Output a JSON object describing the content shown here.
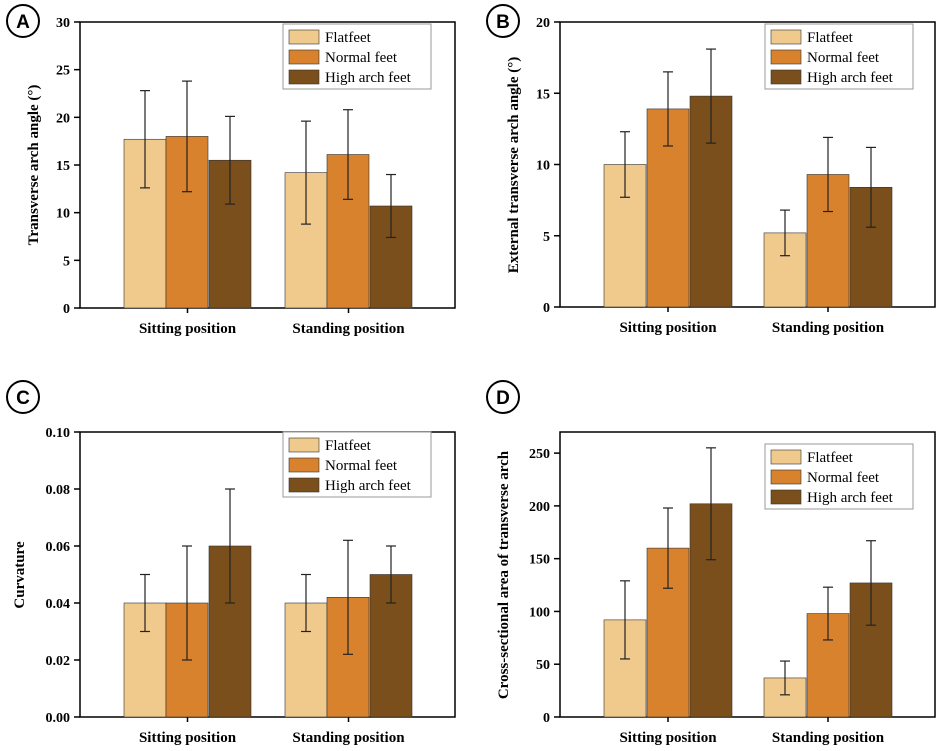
{
  "colors": {
    "series": [
      "#f0c98d",
      "#d9822d",
      "#7b4f1c"
    ],
    "axis": "#000000"
  },
  "chart_data": [
    {
      "panel": "A",
      "type": "bar",
      "title": "",
      "xlabel": "",
      "ylabel": "Transverse arch angle (°)",
      "categories": [
        "Sitting position",
        "Standing position"
      ],
      "series": [
        {
          "name": "Flatfeet",
          "values": [
            17.7,
            14.2
          ],
          "errors": [
            5.1,
            5.4
          ]
        },
        {
          "name": "Normal feet",
          "values": [
            18.0,
            16.1
          ],
          "errors": [
            5.8,
            4.7
          ]
        },
        {
          "name": "High arch feet",
          "values": [
            15.5,
            10.7
          ],
          "errors": [
            4.6,
            3.3
          ]
        }
      ],
      "ylim": [
        0,
        30
      ],
      "yticks": [
        0,
        5,
        10,
        15,
        20,
        25,
        30
      ],
      "ytick_labels": [
        "0",
        "5",
        "10",
        "15",
        "20",
        "25",
        "30"
      ],
      "legend": "top-right"
    },
    {
      "panel": "B",
      "type": "bar",
      "title": "",
      "xlabel": "",
      "ylabel": "External transverse arch angle (°)",
      "categories": [
        "Sitting position",
        "Standing position"
      ],
      "series": [
        {
          "name": "Flatfeet",
          "values": [
            10.0,
            5.2
          ],
          "errors": [
            2.3,
            1.6
          ]
        },
        {
          "name": "Normal feet",
          "values": [
            13.9,
            9.3
          ],
          "errors": [
            2.6,
            2.6
          ]
        },
        {
          "name": "High arch feet",
          "values": [
            14.8,
            8.4
          ],
          "errors": [
            3.3,
            2.8
          ]
        }
      ],
      "ylim": [
        0,
        20
      ],
      "yticks": [
        0,
        5,
        10,
        15,
        20
      ],
      "ytick_labels": [
        "0",
        "5",
        "10",
        "15",
        "20"
      ],
      "legend": "top-right"
    },
    {
      "panel": "C",
      "type": "bar",
      "title": "",
      "xlabel": "",
      "ylabel": "Curvature",
      "categories": [
        "Sitting position",
        "Standing position"
      ],
      "series": [
        {
          "name": "Flatfeet",
          "values": [
            0.04,
            0.04
          ],
          "errors": [
            0.01,
            0.01
          ]
        },
        {
          "name": "Normal feet",
          "values": [
            0.04,
            0.042
          ],
          "errors": [
            0.02,
            0.02
          ]
        },
        {
          "name": "High arch feet",
          "values": [
            0.06,
            0.05
          ],
          "errors": [
            0.02,
            0.01
          ]
        }
      ],
      "ylim": [
        0,
        0.1
      ],
      "yticks": [
        0,
        0.02,
        0.04,
        0.06,
        0.08,
        0.1
      ],
      "ytick_labels": [
        "0.00",
        "0.02",
        "0.04",
        "0.06",
        "0.08",
        "0.10"
      ],
      "legend": "top-right"
    },
    {
      "panel": "D",
      "type": "bar",
      "title": "",
      "xlabel": "",
      "ylabel": "Cross-sectional area of transverse arch",
      "categories": [
        "Sitting position",
        "Standing position"
      ],
      "series": [
        {
          "name": "Flatfeet",
          "values": [
            92,
            37
          ],
          "errors": [
            37,
            16
          ]
        },
        {
          "name": "Normal feet",
          "values": [
            160,
            98
          ],
          "errors": [
            38,
            25
          ]
        },
        {
          "name": "High arch feet",
          "values": [
            202,
            127
          ],
          "errors": [
            53,
            40
          ]
        }
      ],
      "ylim": [
        0,
        270
      ],
      "yticks": [
        0,
        50,
        100,
        150,
        200,
        250
      ],
      "ytick_labels": [
        "0",
        "50",
        "100",
        "150",
        "200",
        "250"
      ],
      "legend": "top-right"
    }
  ]
}
